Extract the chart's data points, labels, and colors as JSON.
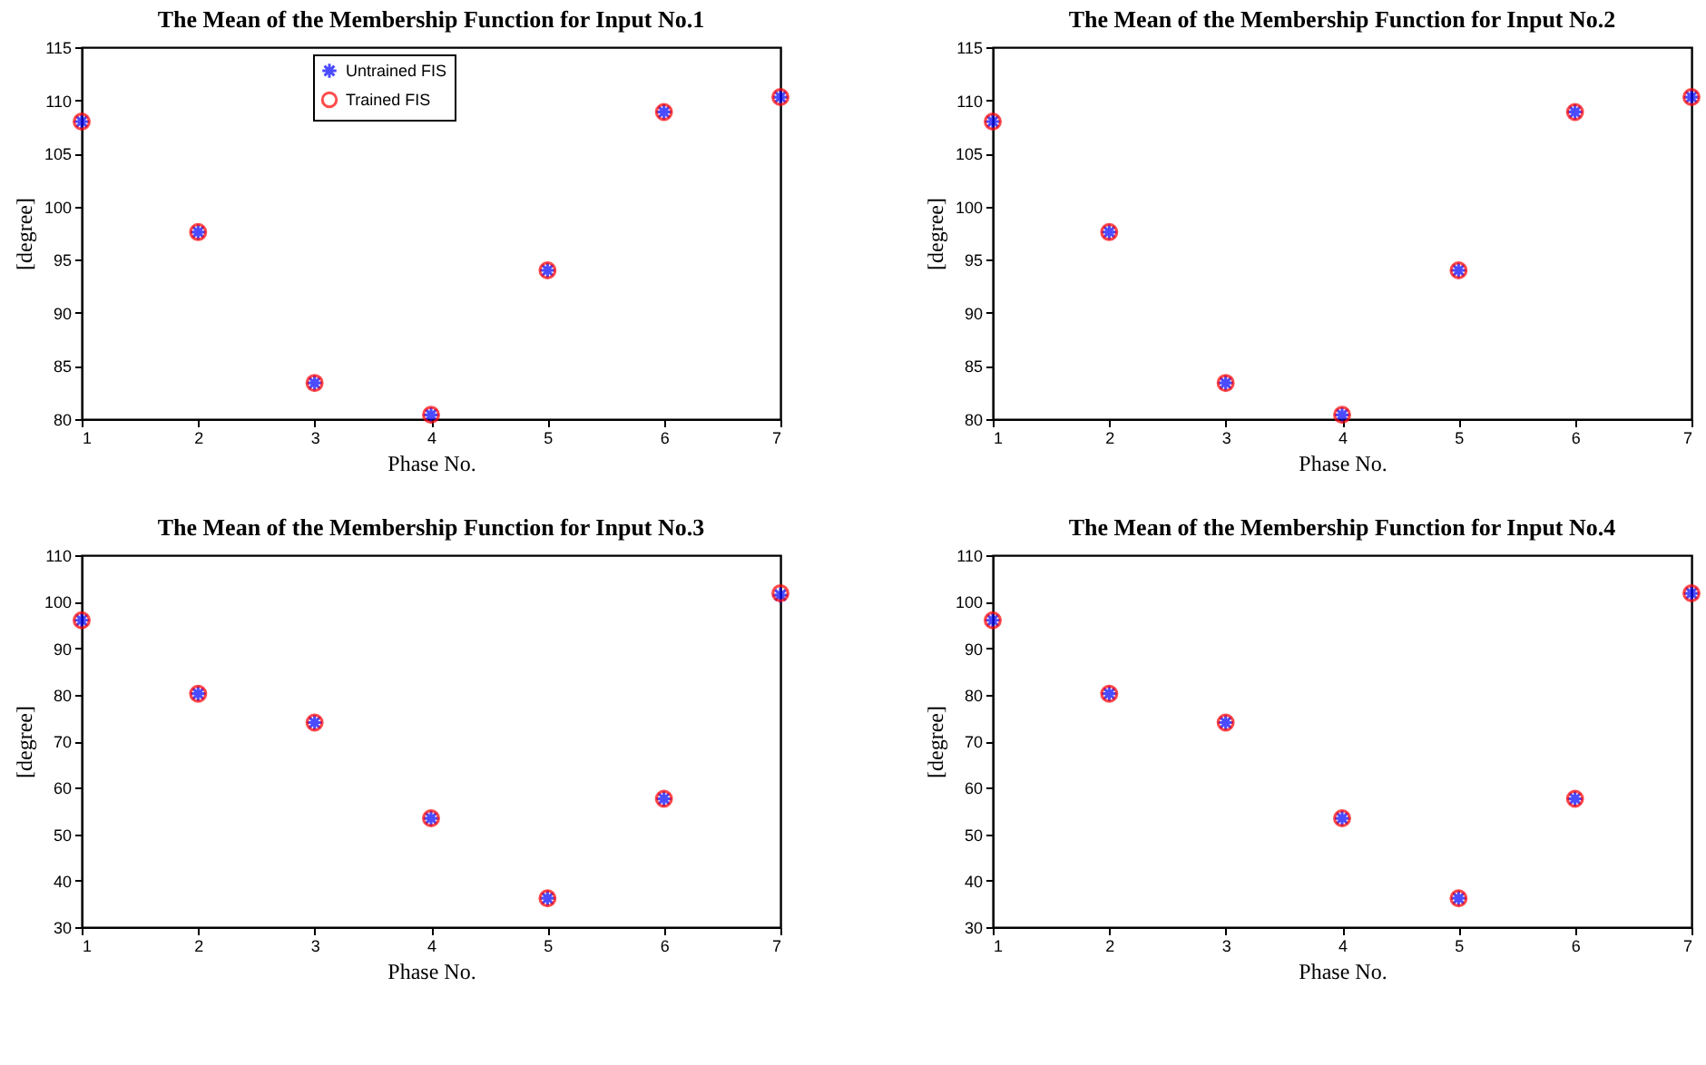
{
  "chart_data": [
    {
      "type": "scatter",
      "title": "The Mean of the Membership Function for Input No.1",
      "xlabel": "Phase No.",
      "ylabel": "[degree]",
      "x": [
        1,
        2,
        3,
        4,
        5,
        6,
        7
      ],
      "xlim": [
        1,
        7
      ],
      "xticks": [
        1,
        2,
        3,
        4,
        5,
        6,
        7
      ],
      "ylim": [
        80,
        115
      ],
      "yticks": [
        80,
        85,
        90,
        95,
        100,
        105,
        110,
        115
      ],
      "grid": false,
      "legend": "top",
      "series": [
        {
          "name": "Untrained FIS",
          "color": "#0000ff",
          "marker": "cross",
          "values": [
            108,
            97.6,
            83.4,
            80.4,
            94,
            108.9,
            110.3
          ]
        },
        {
          "name": "Trained FIS",
          "color": "#ff0000",
          "marker": "circle",
          "values": [
            108,
            97.6,
            83.4,
            80.4,
            94,
            108.9,
            110.3
          ]
        }
      ]
    },
    {
      "type": "scatter",
      "title": "The Mean of the Membership Function for Input No.2",
      "xlabel": "Phase No.",
      "ylabel": "[degree]",
      "x": [
        1,
        2,
        3,
        4,
        5,
        6,
        7
      ],
      "xlim": [
        1,
        7
      ],
      "xticks": [
        1,
        2,
        3,
        4,
        5,
        6,
        7
      ],
      "ylim": [
        80,
        115
      ],
      "yticks": [
        80,
        85,
        90,
        95,
        100,
        105,
        110,
        115
      ],
      "grid": false,
      "legend": "top",
      "series": [
        {
          "name": "Untrained FIS",
          "color": "#0000ff",
          "marker": "cross",
          "values": [
            108,
            97.6,
            83.4,
            80.4,
            94,
            108.9,
            110.3
          ]
        },
        {
          "name": "Trained FIS",
          "color": "#ff0000",
          "marker": "circle",
          "values": [
            108,
            97.6,
            83.4,
            80.4,
            94,
            108.9,
            110.3
          ]
        }
      ]
    },
    {
      "type": "scatter",
      "title": "The Mean of the Membership Function for Input No.3",
      "xlabel": "Phase No.",
      "ylabel": "[degree]",
      "x": [
        1,
        2,
        3,
        4,
        5,
        6,
        7
      ],
      "xlim": [
        1,
        7
      ],
      "xticks": [
        1,
        2,
        3,
        4,
        5,
        6,
        7
      ],
      "ylim": [
        30,
        110
      ],
      "yticks": [
        30,
        40,
        50,
        60,
        70,
        80,
        90,
        100,
        110
      ],
      "grid": false,
      "legend": "top",
      "series": [
        {
          "name": "Untrained FIS",
          "color": "#0000ff",
          "marker": "cross",
          "values": [
            96,
            80.2,
            74,
            53.4,
            36.2,
            57.6,
            101.4
          ]
        },
        {
          "name": "Trained FIS",
          "color": "#ff0000",
          "marker": "circle",
          "values": [
            96,
            80.2,
            74,
            53.4,
            36.2,
            57.6,
            101.8
          ]
        }
      ]
    },
    {
      "type": "scatter",
      "title": "The Mean of the Membership Function for Input No.4",
      "xlabel": "Phase No.",
      "ylabel": "[degree]",
      "x": [
        1,
        2,
        3,
        4,
        5,
        6,
        7
      ],
      "xlim": [
        1,
        7
      ],
      "xticks": [
        1,
        2,
        3,
        4,
        5,
        6,
        7
      ],
      "ylim": [
        30,
        110
      ],
      "yticks": [
        30,
        40,
        50,
        60,
        70,
        80,
        90,
        100,
        110
      ],
      "grid": false,
      "legend": "top",
      "series": [
        {
          "name": "Untrained FIS",
          "color": "#0000ff",
          "marker": "cross",
          "values": [
            96,
            80.2,
            74,
            53.4,
            36.2,
            57.6,
            101.8
          ]
        },
        {
          "name": "Trained FIS",
          "color": "#ff0000",
          "marker": "circle",
          "values": [
            96,
            80.2,
            74,
            53.4,
            36.2,
            57.6,
            101.8
          ]
        }
      ]
    }
  ]
}
